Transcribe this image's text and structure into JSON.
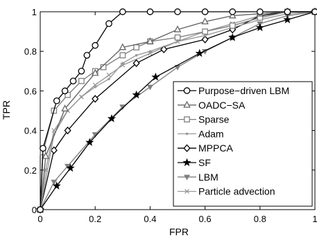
{
  "chart_data": {
    "type": "line",
    "xlabel": "FPR",
    "ylabel": "TPR",
    "xlim": [
      0,
      1
    ],
    "ylim": [
      0,
      1
    ],
    "xticks": [
      0,
      0.2,
      0.4,
      0.6,
      0.8,
      1
    ],
    "yticks": [
      0,
      0.2,
      0.4,
      0.6,
      0.8,
      1
    ],
    "xtick_labels": [
      "0",
      "0.2",
      "0.4",
      "0.6",
      "0.8",
      "1"
    ],
    "ytick_labels": [
      "0",
      "0.2",
      "0.4",
      "0.6",
      "0.8",
      "1"
    ],
    "grid": false,
    "legend_position": "bottom-right",
    "series": [
      {
        "name": "Purpose−driven LBM",
        "color": "#000000",
        "marker": "circle",
        "points": [
          [
            0,
            0
          ],
          [
            0.01,
            0.31
          ],
          [
            0.06,
            0.55
          ],
          [
            0.09,
            0.6
          ],
          [
            0.12,
            0.65
          ],
          [
            0.15,
            0.7
          ],
          [
            0.17,
            0.78
          ],
          [
            0.2,
            0.83
          ],
          [
            0.25,
            0.94
          ],
          [
            0.3,
            1.0
          ],
          [
            0.4,
            1.0
          ],
          [
            0.5,
            1.0
          ],
          [
            0.6,
            1.0
          ],
          [
            0.7,
            1.0
          ],
          [
            0.8,
            1.0
          ],
          [
            0.9,
            1.0
          ],
          [
            1.0,
            1.0
          ]
        ]
      },
      {
        "name": "OADC−SA",
        "color": "#666666",
        "marker": "triangle-up",
        "points": [
          [
            0,
            0
          ],
          [
            0.02,
            0.27
          ],
          [
            0.09,
            0.51
          ],
          [
            0.2,
            0.69
          ],
          [
            0.3,
            0.82
          ],
          [
            0.4,
            0.85
          ],
          [
            0.5,
            0.91
          ],
          [
            0.6,
            0.95
          ],
          [
            0.7,
            0.98
          ],
          [
            0.8,
            0.99
          ],
          [
            0.9,
            1.0
          ],
          [
            1.0,
            1.0
          ]
        ]
      },
      {
        "name": "Sparse",
        "color": "#808080",
        "marker": "square",
        "points": [
          [
            0,
            0
          ],
          [
            0.01,
            0.29
          ],
          [
            0.05,
            0.5
          ],
          [
            0.1,
            0.58
          ],
          [
            0.15,
            0.65
          ],
          [
            0.2,
            0.7
          ],
          [
            0.23,
            0.72
          ],
          [
            0.3,
            0.78
          ],
          [
            0.35,
            0.82
          ],
          [
            0.4,
            0.85
          ],
          [
            0.5,
            0.87
          ],
          [
            0.6,
            0.9
          ],
          [
            0.7,
            0.93
          ],
          [
            0.8,
            0.97
          ],
          [
            0.9,
            1.0
          ],
          [
            1.0,
            1.0
          ]
        ]
      },
      {
        "name": "Adam",
        "color": "#999999",
        "marker": "dot",
        "points": [
          [
            0,
            0
          ],
          [
            0.05,
            0.38
          ],
          [
            0.1,
            0.5
          ],
          [
            0.15,
            0.57
          ],
          [
            0.2,
            0.62
          ],
          [
            0.25,
            0.66
          ],
          [
            0.3,
            0.74
          ],
          [
            0.35,
            0.78
          ],
          [
            0.4,
            0.8
          ],
          [
            0.5,
            0.85
          ],
          [
            0.6,
            0.88
          ],
          [
            0.7,
            0.92
          ],
          [
            0.8,
            0.96
          ],
          [
            0.9,
            0.99
          ],
          [
            1.0,
            1.0
          ]
        ]
      },
      {
        "name": "MPPCA",
        "color": "#000000",
        "marker": "diamond",
        "points": [
          [
            0,
            0
          ],
          [
            0.05,
            0.3
          ],
          [
            0.1,
            0.4
          ],
          [
            0.2,
            0.56
          ],
          [
            0.35,
            0.74
          ],
          [
            0.45,
            0.81
          ],
          [
            0.6,
            0.86
          ],
          [
            0.7,
            0.91
          ],
          [
            0.8,
            0.98
          ],
          [
            0.9,
            1.0
          ],
          [
            1.0,
            1.0
          ]
        ]
      },
      {
        "name": "SF",
        "color": "#000000",
        "marker": "star",
        "points": [
          [
            0,
            0
          ],
          [
            0.06,
            0.12
          ],
          [
            0.11,
            0.21
          ],
          [
            0.18,
            0.34
          ],
          [
            0.26,
            0.46
          ],
          [
            0.35,
            0.58
          ],
          [
            0.42,
            0.67
          ],
          [
            0.58,
            0.79
          ],
          [
            0.7,
            0.87
          ],
          [
            0.8,
            0.92
          ],
          [
            0.9,
            0.96
          ],
          [
            1.0,
            1.0
          ]
        ]
      },
      {
        "name": "LBM",
        "color": "#808080",
        "marker": "triangle-down",
        "points": [
          [
            0,
            0
          ],
          [
            0.05,
            0.14
          ],
          [
            0.1,
            0.22
          ],
          [
            0.2,
            0.38
          ],
          [
            0.3,
            0.52
          ],
          [
            0.4,
            0.62
          ],
          [
            0.5,
            0.72
          ],
          [
            0.6,
            0.8
          ],
          [
            0.7,
            0.87
          ],
          [
            0.8,
            0.94
          ],
          [
            0.9,
            0.98
          ],
          [
            1.0,
            1.0
          ]
        ]
      },
      {
        "name": "Particle advection",
        "color": "#999999",
        "marker": "x",
        "points": [
          [
            0,
            0
          ],
          [
            0.02,
            0.2
          ],
          [
            0.05,
            0.4
          ],
          [
            0.1,
            0.5
          ],
          [
            0.15,
            0.57
          ],
          [
            0.2,
            0.63
          ],
          [
            0.25,
            0.68
          ],
          [
            0.3,
            0.73
          ],
          [
            0.4,
            0.79
          ],
          [
            0.5,
            0.85
          ],
          [
            0.6,
            0.9
          ],
          [
            0.7,
            0.94
          ],
          [
            0.8,
            0.98
          ],
          [
            0.9,
            1.0
          ],
          [
            1.0,
            1.0
          ]
        ]
      }
    ]
  }
}
